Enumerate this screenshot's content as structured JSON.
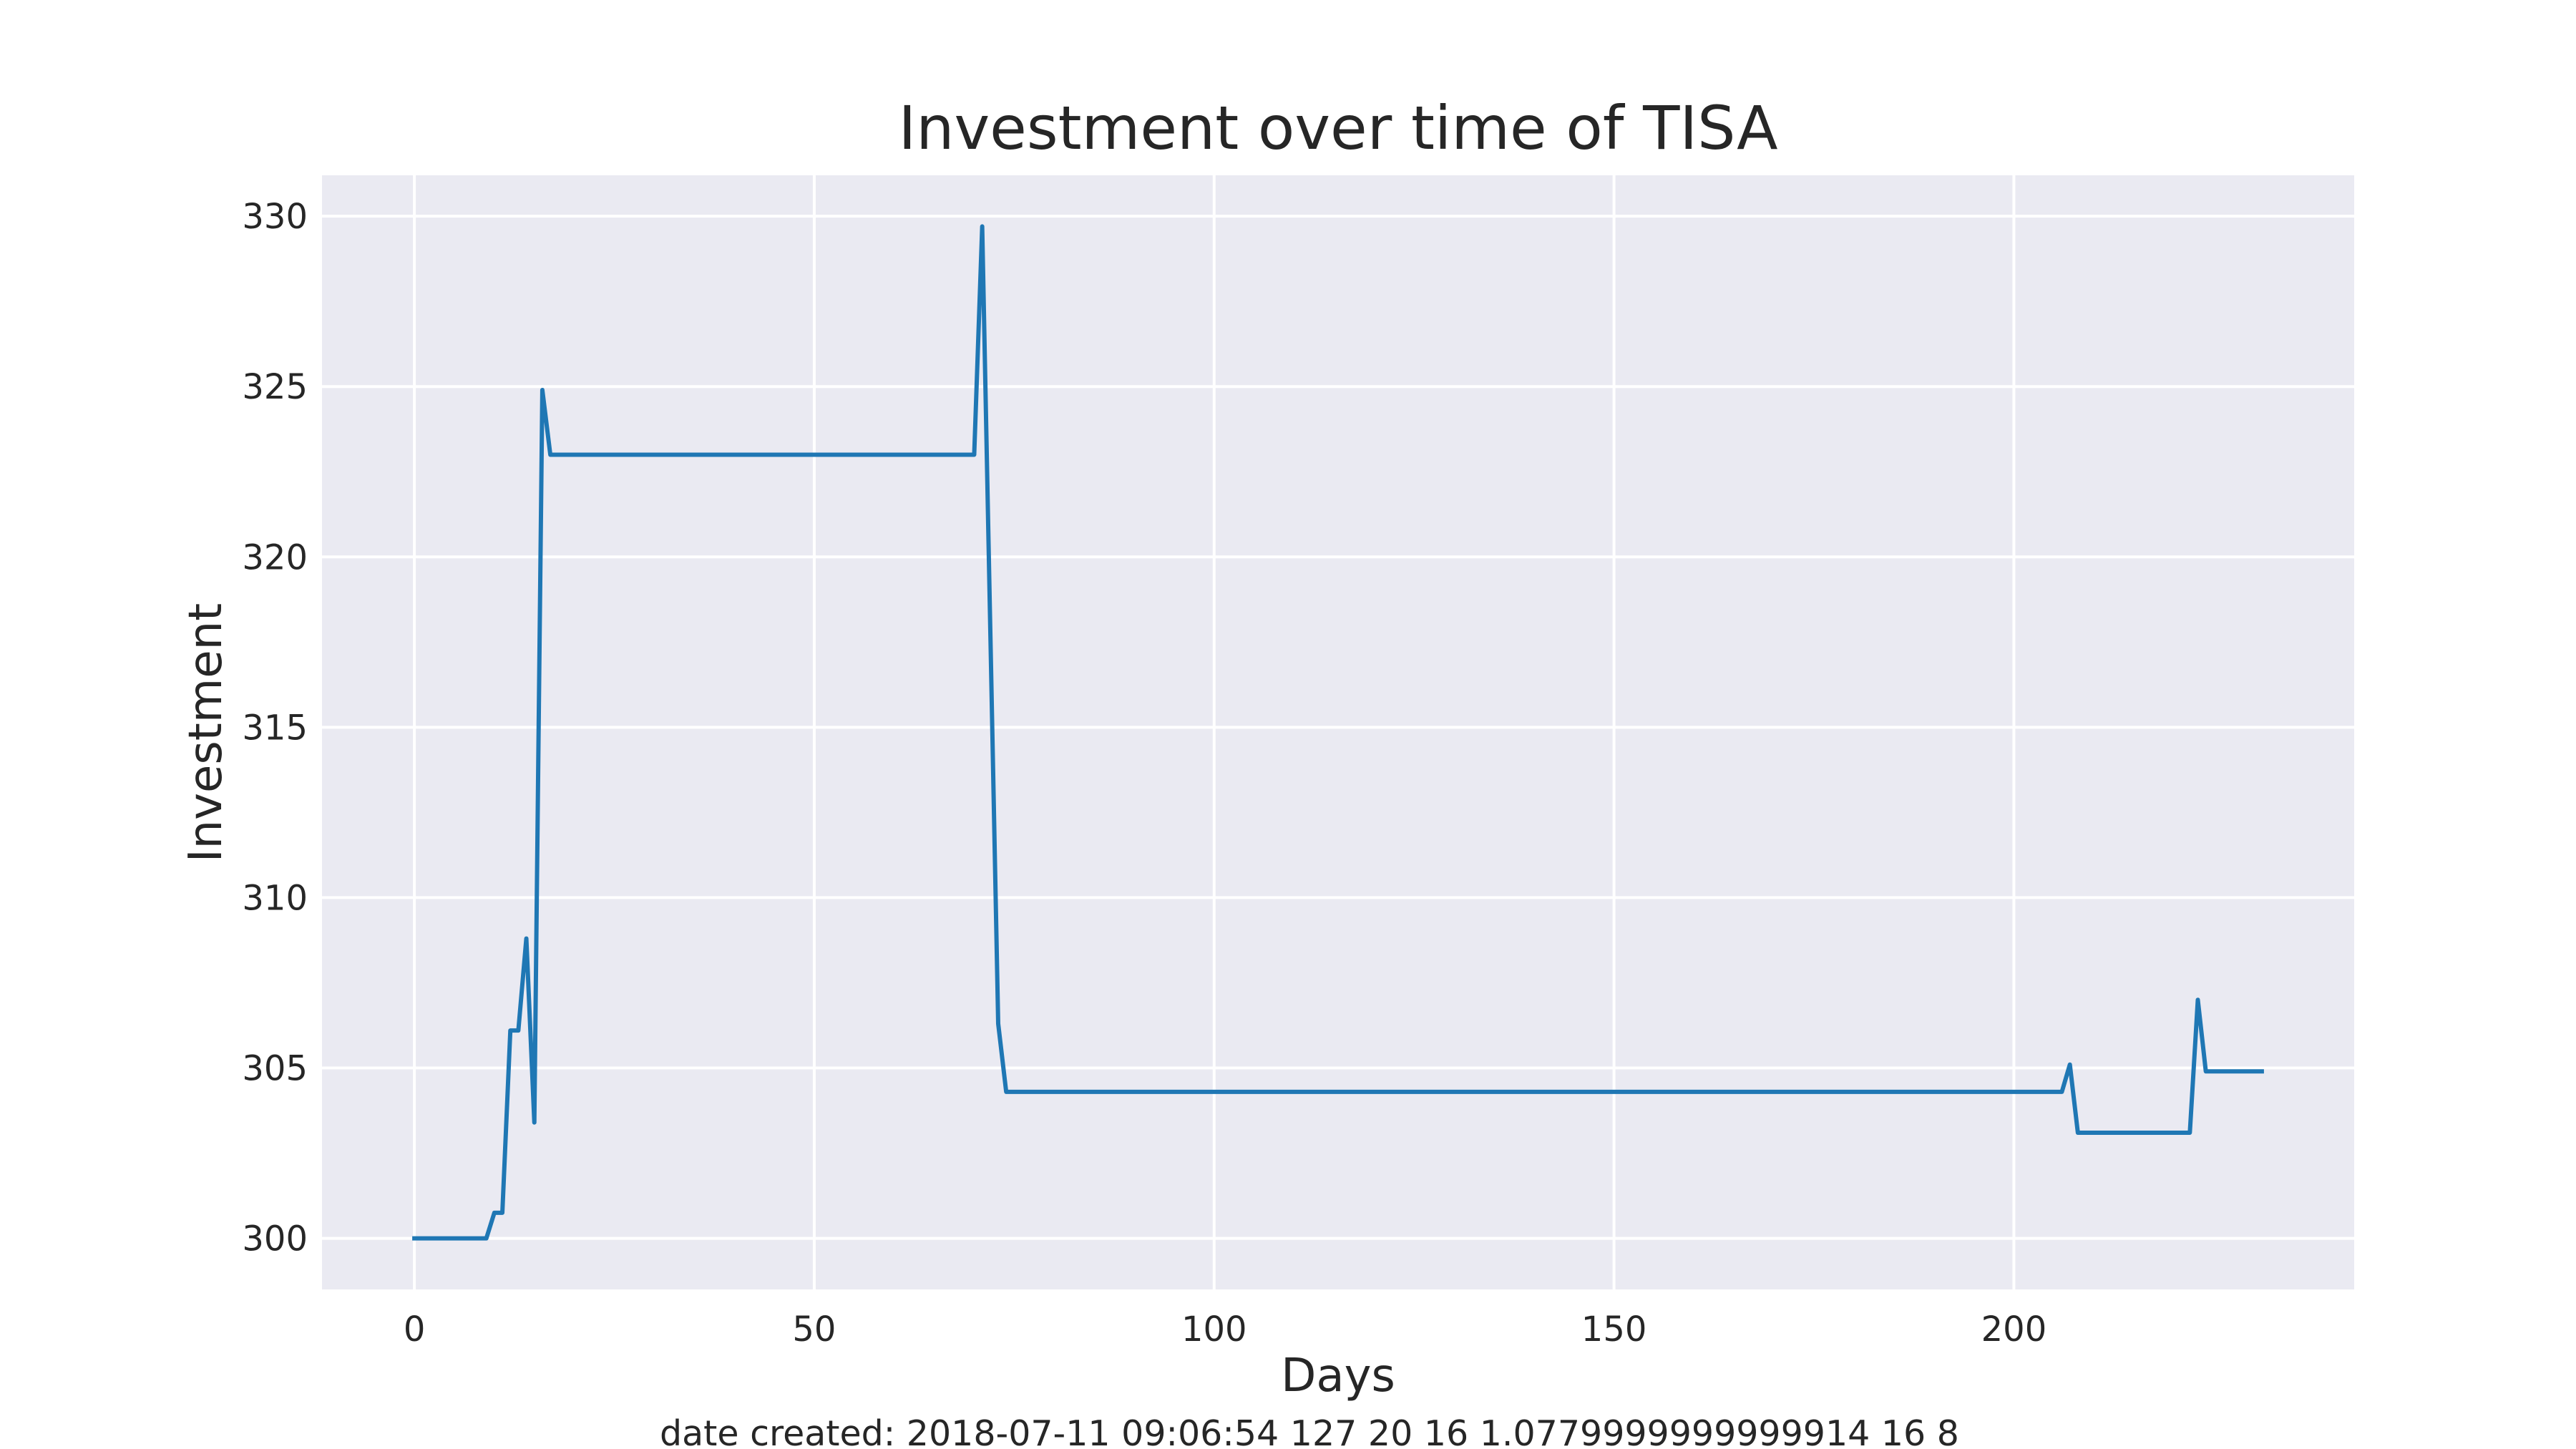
{
  "chart_data": {
    "type": "line",
    "title": "Investment over time of TISA",
    "xlabel": "Days",
    "ylabel": "Investment",
    "footer": "date created: 2018-07-11 09:06:54 127 20 16 1.0779999999999914 16 8",
    "xlim": [
      -11.55,
      242.55
    ],
    "ylim": [
      298.5,
      331.2
    ],
    "x_ticks": [
      0,
      50,
      100,
      150,
      200
    ],
    "y_ticks": [
      300,
      305,
      310,
      315,
      320,
      325,
      330
    ],
    "grid": true,
    "style": "seaborn-darkgrid",
    "colors": {
      "plot_background": "#eaeaf2",
      "grid": "#ffffff",
      "line": "#1f77b4",
      "text": "#262626"
    },
    "series": [
      {
        "x": [
          0,
          9,
          10,
          11,
          12,
          13,
          14,
          15,
          16,
          17,
          70,
          71,
          73,
          74,
          206,
          207,
          208,
          222,
          223,
          224,
          231
        ],
        "values": [
          300.0,
          300.0,
          300.75,
          300.75,
          306.1,
          306.1,
          308.8,
          303.4,
          324.9,
          323.0,
          323.0,
          329.7,
          306.3,
          304.3,
          304.3,
          305.1,
          303.1,
          303.1,
          307.0,
          304.9,
          304.9
        ]
      }
    ]
  }
}
